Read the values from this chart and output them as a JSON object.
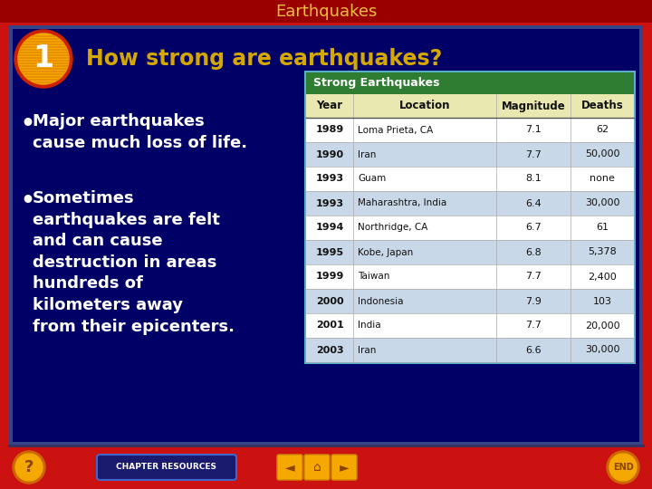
{
  "title": "Earthquakes",
  "question_number": "1",
  "question": "How strong are earthquakes?",
  "bullet1": "Major earthquakes\ncause much loss of life.",
  "bullet2": "Sometimes\nearthquakes are felt\nand can cause\ndestruction in areas\nhundreds of\nkilometers away\nfrom their epicenters.",
  "table_title": "Strong Earthquakes",
  "table_headers": [
    "Year",
    "Location",
    "Magnitude",
    "Deaths"
  ],
  "table_data": [
    [
      "1989",
      "Loma Prieta, CA",
      "7.1",
      "62"
    ],
    [
      "1990",
      "Iran",
      "7.7",
      "50,000"
    ],
    [
      "1993",
      "Guam",
      "8.1",
      "none"
    ],
    [
      "1993",
      "Maharashtra, India",
      "6.4",
      "30,000"
    ],
    [
      "1994",
      "Northridge, CA",
      "6.7",
      "61"
    ],
    [
      "1995",
      "Kobe, Japan",
      "6.8",
      "5,378"
    ],
    [
      "1999",
      "Taiwan",
      "7.7",
      "2,400"
    ],
    [
      "2000",
      "Indonesia",
      "7.9",
      "103"
    ],
    [
      "2001",
      "India",
      "7.7",
      "20,000"
    ],
    [
      "2003",
      "Iran",
      "6.6",
      "30,000"
    ]
  ],
  "bg_color": "#cc1111",
  "title_bar_color": "#aa0000",
  "title_text_color": "#f0c040",
  "question_text_color": "#d4a800",
  "bullet_text_color": "#ffffff",
  "circle_color_outer": "#cc2200",
  "circle_color_inner": "#f5a800",
  "circle_stripe_color": "#e08000",
  "number_color": "#ffffff",
  "table_header_bg": "#2e7d32",
  "table_col_header_bg": "#e8e8b0",
  "table_row_odd_bg": "#ffffff",
  "table_row_even_bg": "#c8d8e8",
  "table_border_color": "#5ab0c8",
  "table_outer_border": "#5ab0c8",
  "footer_button_color": "#f5a800",
  "inner_bg_color": "#000066",
  "inner_border_color": "#334488"
}
